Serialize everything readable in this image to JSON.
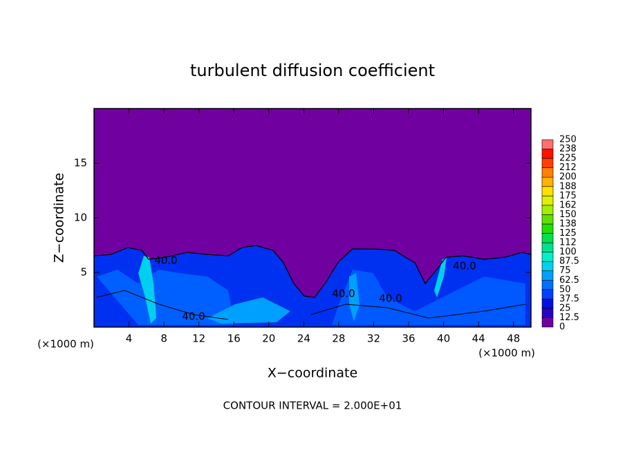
{
  "chart_data": {
    "type": "contour",
    "title": "turbulent diffusion coefficient",
    "x_label": "X−coordinate",
    "y_label": "Z−coordinate",
    "unit_labels": [
      "(×1000 m)",
      "(×1000 m)"
    ],
    "footer": "CONTOUR INTERVAL = 2.000E+01",
    "contour_labels": [
      "40.0",
      "40.0",
      "40.0",
      "40.0",
      "40.0"
    ],
    "xlim": [
      0,
      50
    ],
    "xticks": [
      4,
      8,
      12,
      16,
      20,
      24,
      28,
      32,
      36,
      40,
      44,
      48
    ],
    "ylim": [
      0,
      20
    ],
    "yticks": [
      5,
      10,
      15
    ],
    "colorbar": {
      "levels": [
        0,
        12.5,
        25,
        37.5,
        50,
        62.5,
        75,
        87.5,
        100,
        {
          "value": 112.5,
          "label": "112"
        },
        125,
        {
          "value": 137.5,
          "label": "138"
        },
        150,
        {
          "value": 162.5,
          "label": "162"
        },
        175,
        {
          "value": 187.5,
          "label": "188"
        },
        200,
        {
          "value": 212.5,
          "label": "212"
        },
        225,
        {
          "value": 237.5,
          "label": "238"
        },
        250
      ],
      "colors": [
        "#7000a0",
        "#2a00c0",
        "#0010e0",
        "#0040ff",
        "#0070ff",
        "#00a0ff",
        "#00d0f0",
        "#00f0c8",
        "#00e090",
        "#00e050",
        "#20e000",
        "#60e000",
        "#a0f000",
        "#e0f000",
        "#ffe000",
        "#ffb000",
        "#ff8000",
        "#ff4000",
        "#ff1000",
        "#ff7070"
      ]
    }
  }
}
